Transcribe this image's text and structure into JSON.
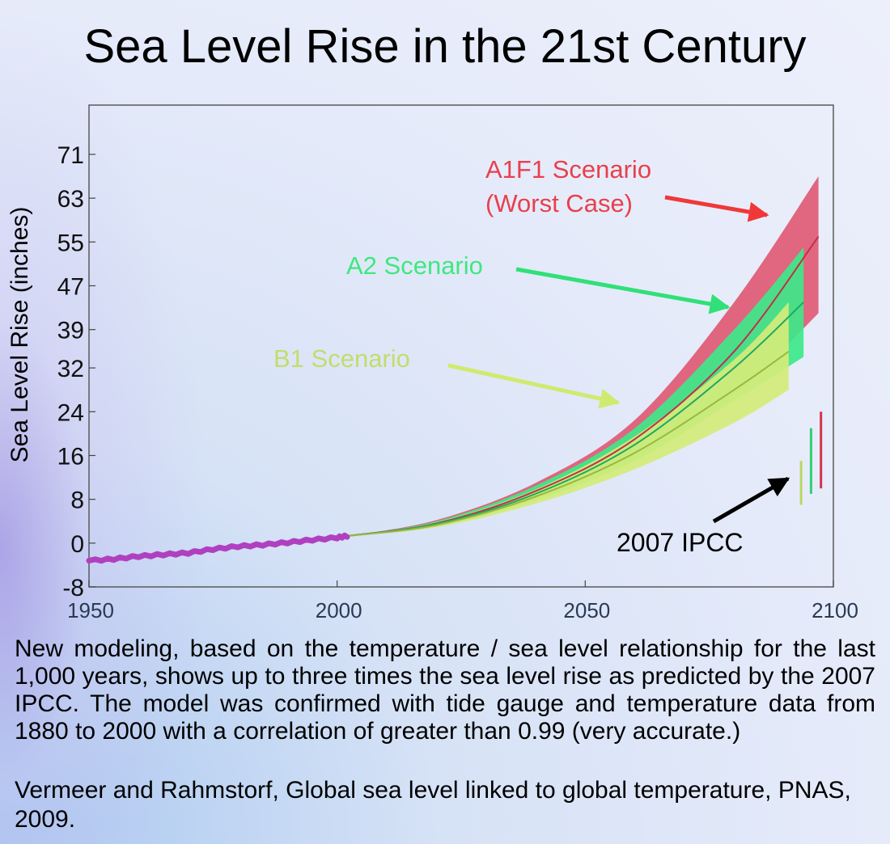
{
  "title": "Sea Level Rise in the 21st Century",
  "caption": "New modeling, based on the temperature / sea level relationship for the last 1,000 years, shows up to three times the sea level rise as predicted by the 2007 IPCC. The model was confirmed with tide gauge and temperature data from 1880 to 2000 with a correlation of greater than 0.99 (very accurate.)",
  "source": "Vermeer and Rahmstorf, Global sea level linked to global temperature, PNAS, 2009.",
  "colors": {
    "observed": "#b040c0",
    "a1f1": "#e05a74",
    "a2": "#3ee88a",
    "b1": "#d4ec7a",
    "a1f1_label": "#e8404c",
    "a2_label": "#3ee880",
    "b1_label": "#c4dc6c",
    "arrow_a1f1": "#f03838",
    "arrow_a2": "#30e078",
    "arrow_b1": "#d0ea70",
    "ipcc_arrow": "#000000"
  },
  "chart_data": {
    "type": "area",
    "xlabel": "",
    "ylabel": "Sea Level Rise (inches)",
    "xlim": [
      1950,
      2100
    ],
    "ylim": [
      -8,
      80
    ],
    "x_ticks": [
      "1950",
      "2000",
      "2050",
      "2100"
    ],
    "y_ticks": [
      "-8",
      "0",
      "8",
      "16",
      "24",
      "32",
      "39",
      "47",
      "55",
      "63",
      "71"
    ],
    "grid": false,
    "observed": {
      "x": [
        1950,
        1955,
        1960,
        1965,
        1970,
        1975,
        1980,
        1985,
        1990,
        1995,
        2000,
        2002
      ],
      "y": [
        -3.2,
        -2.9,
        -2.4,
        -2.1,
        -1.8,
        -1.1,
        -0.6,
        -0.3,
        0.1,
        0.6,
        1.0,
        1.3
      ]
    },
    "series": [
      {
        "name": "A1F1 Scenario",
        "x": [
          2002,
          2020,
          2040,
          2060,
          2080,
          2097
        ],
        "lower": [
          1.3,
          3.0,
          8.0,
          15.5,
          27.0,
          42.0
        ],
        "upper": [
          1.3,
          4.2,
          11.0,
          22.5,
          44.0,
          67.0
        ],
        "mean": [
          1.3,
          3.6,
          9.5,
          19.0,
          35.0,
          56.0
        ]
      },
      {
        "name": "A2 Scenario",
        "x": [
          2002,
          2020,
          2040,
          2060,
          2080,
          2094
        ],
        "lower": [
          1.3,
          3.0,
          7.8,
          15.0,
          26.0,
          34.0
        ],
        "upper": [
          1.3,
          4.0,
          10.5,
          21.0,
          39.0,
          54.0
        ],
        "mean": [
          1.3,
          3.5,
          9.0,
          18.0,
          32.0,
          44.0
        ]
      },
      {
        "name": "B1 Scenario",
        "x": [
          2002,
          2020,
          2040,
          2060,
          2080,
          2091
        ],
        "lower": [
          1.3,
          2.9,
          7.2,
          13.5,
          22.0,
          28.0
        ],
        "upper": [
          1.3,
          3.8,
          9.8,
          19.5,
          33.5,
          44.0
        ],
        "mean": [
          1.3,
          3.3,
          8.5,
          16.5,
          28.0,
          35.0
        ]
      }
    ],
    "scenario_labels": {
      "a1f1_line1": "A1F1 Scenario",
      "a1f1_line2": "(Worst Case)",
      "a2": "A2 Scenario",
      "b1": "B1 Scenario"
    },
    "ipcc": {
      "label": "2007 IPCC",
      "bars": [
        {
          "x": 2093.5,
          "low": 7,
          "high": 15,
          "color": "#b8d860"
        },
        {
          "x": 2095.5,
          "low": 9,
          "high": 21,
          "color": "#30d070"
        },
        {
          "x": 2097.5,
          "low": 10,
          "high": 24,
          "color": "#d83050"
        }
      ]
    }
  }
}
